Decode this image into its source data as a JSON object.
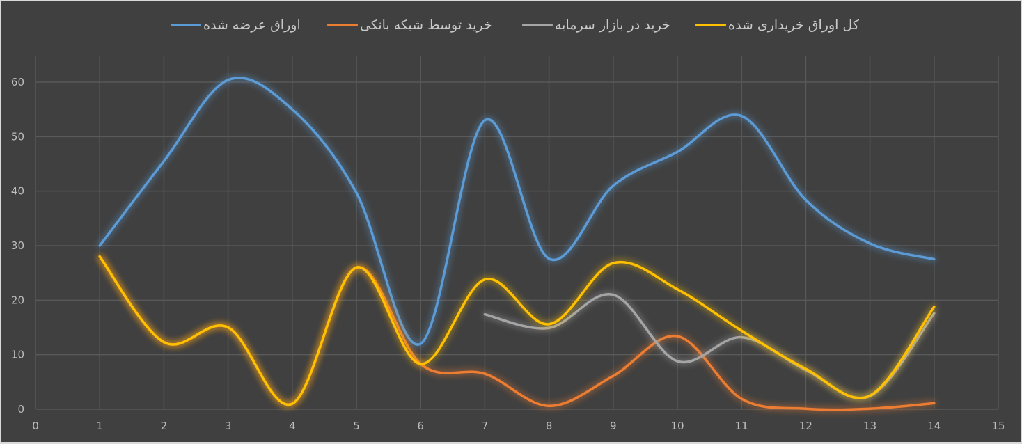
{
  "chart_data": {
    "type": "line",
    "title": "",
    "xlabel": "",
    "ylabel": "",
    "xlim": [
      0,
      15
    ],
    "ylim": [
      0,
      65
    ],
    "x_ticks": [
      0,
      1,
      2,
      3,
      4,
      5,
      6,
      7,
      8,
      9,
      10,
      11,
      12,
      13,
      14,
      15
    ],
    "y_ticks": [
      0,
      10,
      20,
      30,
      40,
      50,
      60
    ],
    "grid": true,
    "smooth": true,
    "legend_position": "top",
    "series": [
      {
        "name": "اوراق عرضه شده",
        "color": "#5b9bd5",
        "x": [
          1,
          2,
          3,
          4,
          5,
          6,
          7,
          8,
          9,
          10,
          11,
          12,
          13,
          14
        ],
        "values": [
          30,
          45.5,
          60.4,
          55,
          39.7,
          12,
          53,
          27.6,
          41,
          47.2,
          53.8,
          38.4,
          30.4,
          27.5
        ]
      },
      {
        "name": "خرید توسط شبکه بانکی",
        "color": "#ed7d31",
        "x": [
          1,
          2,
          3,
          4,
          5,
          6,
          7,
          8,
          9,
          10,
          11,
          12,
          13,
          14
        ],
        "values": [
          28,
          12.3,
          15,
          1,
          26,
          8.3,
          6.5,
          0.6,
          6.1,
          13.4,
          1.9,
          0.1,
          0.1,
          1.1
        ]
      },
      {
        "name": "خرید در بازار سرمایه",
        "color": "#a5a5a5",
        "x": [
          7,
          8,
          9,
          10,
          11,
          12,
          13,
          14
        ],
        "values": [
          17.4,
          14.9,
          21,
          8.8,
          13.2,
          7.2,
          2.4,
          17.6
        ]
      },
      {
        "name": "کل اوراق خریداری شده",
        "color": "#ffc000",
        "x": [
          1,
          2,
          3,
          4,
          5,
          6,
          7,
          8,
          9,
          10,
          11,
          12,
          13,
          14
        ],
        "values": [
          28,
          12.3,
          15,
          1,
          26,
          8.3,
          23.8,
          15.6,
          26.8,
          22,
          14.4,
          7.4,
          2.5,
          18.8
        ]
      }
    ]
  },
  "legend": {
    "items": [
      {
        "label": "اوراق عرضه شده",
        "color": "#5b9bd5"
      },
      {
        "label": "خرید توسط شبکه بانکی",
        "color": "#ed7d31"
      },
      {
        "label": "خرید در بازار سرمایه",
        "color": "#a5a5a5"
      },
      {
        "label": "کل اوراق خریداری شده",
        "color": "#ffc000"
      }
    ]
  },
  "style": {
    "background": "#404040",
    "grid_color": "#595959",
    "text_color": "#bfbfbf",
    "border_color": "#d9d9d9"
  }
}
